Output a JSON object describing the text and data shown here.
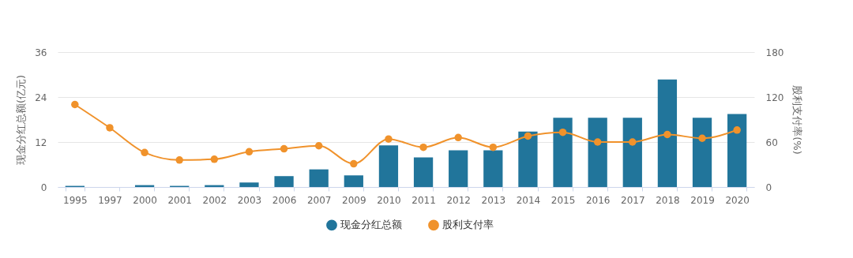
{
  "chart_data": {
    "type": "bar",
    "ylabel": "现金分红总额(亿元)",
    "y2label": "股利支付率(%)",
    "categories": [
      "1995",
      "1997",
      "2000",
      "2001",
      "2002",
      "2003",
      "2006",
      "2007",
      "2009",
      "2010",
      "2011",
      "2012",
      "2013",
      "2014",
      "2015",
      "2016",
      "2017",
      "2018",
      "2019",
      "2020"
    ],
    "series": [
      {
        "name": "现金分红总额",
        "color": "#21759b",
        "values": [
          0.3,
          0,
          0.5,
          0.3,
          0.5,
          1.2,
          2.9,
          4.7,
          3.1,
          11.1,
          7.9,
          9.8,
          9.8,
          14.8,
          18.5,
          18.5,
          18.5,
          28.7,
          18.5,
          19.5
        ]
      },
      {
        "name": "股利支付率",
        "type": "line",
        "axis": "y2",
        "color": "#f0922b",
        "values": [
          110,
          79,
          46,
          36,
          37,
          47,
          51,
          55,
          31,
          64,
          53,
          66,
          53,
          68,
          73,
          60,
          60,
          70,
          65,
          76
        ]
      }
    ],
    "ylim": [
      0,
      36
    ],
    "yticks": [
      0,
      12,
      24,
      36
    ],
    "y2lim": [
      0,
      180
    ],
    "y2ticks": [
      0,
      60,
      120,
      180
    ],
    "grid": "y",
    "legend": "bottom",
    "marker": "circle",
    "line_style": "solid"
  }
}
